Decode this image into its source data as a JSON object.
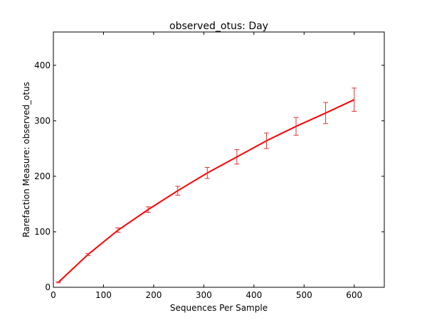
{
  "chart_data": {
    "type": "line",
    "title": "observed_otus: Day",
    "xlabel": "Sequences Per Sample",
    "ylabel": "Rarefaction Measure: observed_otus",
    "xlim": [
      0,
      660
    ],
    "ylim": [
      0,
      460
    ],
    "xticks": [
      0,
      100,
      200,
      300,
      400,
      500,
      600
    ],
    "yticks": [
      0,
      100,
      200,
      300,
      400
    ],
    "grid": false,
    "series": [
      {
        "color": "#ff0000",
        "error_color": "#e03030",
        "x": [
          10,
          69,
          129,
          189,
          248,
          307,
          366,
          425,
          484,
          543,
          600
        ],
        "values": [
          9,
          59,
          103,
          140,
          174,
          206,
          235,
          264,
          290,
          314,
          338
        ],
        "errors": [
          1,
          2,
          4,
          5,
          8,
          10,
          13,
          14,
          16,
          19,
          21
        ]
      }
    ]
  }
}
